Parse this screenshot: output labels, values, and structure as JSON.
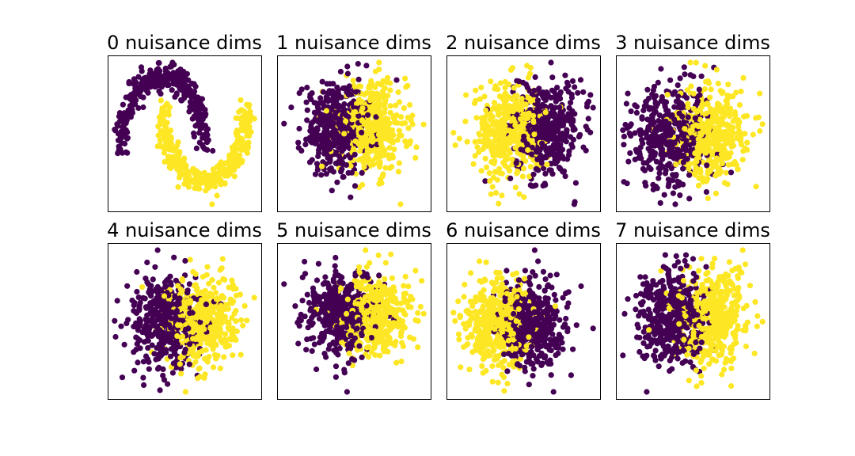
{
  "figure": {
    "description_free": true,
    "colors": {
      "class0": "#440154",
      "class1": "#fde725"
    }
  },
  "chart_data": [
    {
      "type": "scatter",
      "title": "0 nuisance dims",
      "shape": "moons",
      "points_per_class": 340,
      "grid": false,
      "axes_visible": false,
      "legend": "none"
    },
    {
      "type": "scatter",
      "title": "1 nuisance dims",
      "shape": "blobs",
      "class0_side": "left",
      "points_per_class": 420,
      "grid": false,
      "axes_visible": false,
      "legend": "none"
    },
    {
      "type": "scatter",
      "title": "2 nuisance dims",
      "shape": "blobs",
      "class0_side": "right",
      "points_per_class": 420,
      "grid": false,
      "axes_visible": false,
      "legend": "none"
    },
    {
      "type": "scatter",
      "title": "3 nuisance dims",
      "shape": "blobs",
      "class0_side": "left",
      "points_per_class": 420,
      "grid": false,
      "axes_visible": false,
      "legend": "none"
    },
    {
      "type": "scatter",
      "title": "4 nuisance dims",
      "shape": "blobs",
      "class0_side": "left",
      "points_per_class": 420,
      "grid": false,
      "axes_visible": false,
      "legend": "none"
    },
    {
      "type": "scatter",
      "title": "5 nuisance dims",
      "shape": "blobs",
      "class0_side": "left",
      "points_per_class": 420,
      "grid": false,
      "axes_visible": false,
      "legend": "none"
    },
    {
      "type": "scatter",
      "title": "6 nuisance dims",
      "shape": "blobs",
      "class0_side": "right",
      "points_per_class": 420,
      "grid": false,
      "axes_visible": false,
      "legend": "none"
    },
    {
      "type": "scatter",
      "title": "7 nuisance dims",
      "shape": "blobs",
      "class0_side": "left",
      "points_per_class": 420,
      "grid": false,
      "axes_visible": false,
      "legend": "none"
    }
  ]
}
